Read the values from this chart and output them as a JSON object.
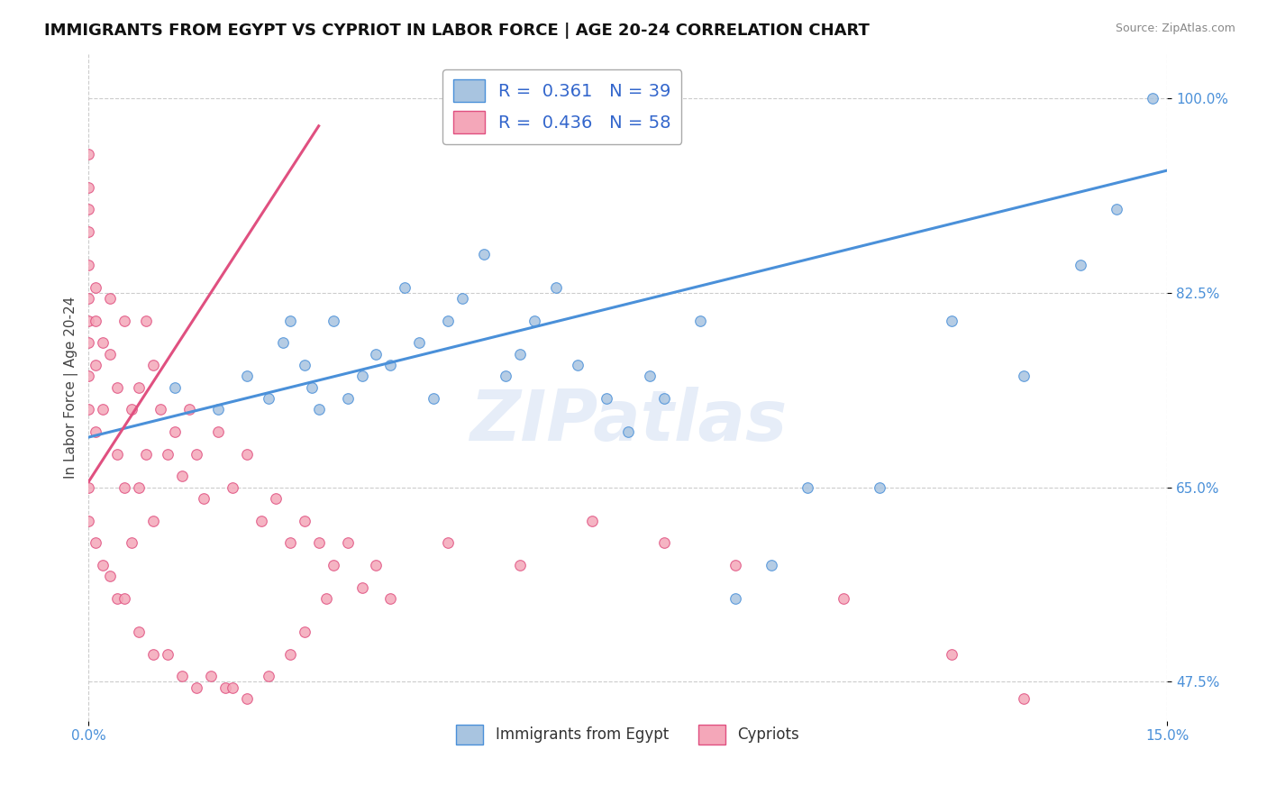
{
  "title": "IMMIGRANTS FROM EGYPT VS CYPRIOT IN LABOR FORCE | AGE 20-24 CORRELATION CHART",
  "source": "Source: ZipAtlas.com",
  "ylabel": "In Labor Force | Age 20-24",
  "xlim": [
    0.0,
    0.15
  ],
  "ylim": [
    0.44,
    1.04
  ],
  "r_egypt": 0.361,
  "n_egypt": 39,
  "r_cypriot": 0.436,
  "n_cypriot": 58,
  "color_egypt": "#a8c4e0",
  "color_cypriot": "#f4a7b9",
  "line_color_egypt": "#4a90d9",
  "line_color_cypriot": "#e05080",
  "legend_egypt": "Immigrants from Egypt",
  "legend_cypriot": "Cypriots",
  "grid_color": "#cccccc",
  "bg_color": "#ffffff",
  "title_fontsize": 13,
  "label_fontsize": 11,
  "tick_fontsize": 11,
  "egypt_x": [
    0.012,
    0.018,
    0.022,
    0.025,
    0.027,
    0.028,
    0.03,
    0.031,
    0.032,
    0.034,
    0.036,
    0.038,
    0.04,
    0.042,
    0.044,
    0.046,
    0.048,
    0.05,
    0.052,
    0.055,
    0.058,
    0.06,
    0.062,
    0.065,
    0.068,
    0.072,
    0.075,
    0.078,
    0.08,
    0.085,
    0.09,
    0.095,
    0.1,
    0.11,
    0.12,
    0.13,
    0.138,
    0.143,
    0.148
  ],
  "egypt_y": [
    0.74,
    0.72,
    0.75,
    0.73,
    0.78,
    0.8,
    0.76,
    0.74,
    0.72,
    0.8,
    0.73,
    0.75,
    0.77,
    0.76,
    0.83,
    0.78,
    0.73,
    0.8,
    0.82,
    0.86,
    0.75,
    0.77,
    0.8,
    0.83,
    0.76,
    0.73,
    0.7,
    0.75,
    0.73,
    0.8,
    0.55,
    0.58,
    0.65,
    0.65,
    0.8,
    0.75,
    0.85,
    0.9,
    1.0
  ],
  "cypriot_x": [
    0.0,
    0.0,
    0.0,
    0.0,
    0.0,
    0.0,
    0.0,
    0.0,
    0.0,
    0.0,
    0.001,
    0.001,
    0.001,
    0.001,
    0.002,
    0.002,
    0.003,
    0.003,
    0.004,
    0.004,
    0.005,
    0.005,
    0.006,
    0.006,
    0.007,
    0.007,
    0.008,
    0.008,
    0.009,
    0.009,
    0.01,
    0.011,
    0.012,
    0.013,
    0.014,
    0.015,
    0.016,
    0.018,
    0.02,
    0.022,
    0.024,
    0.026,
    0.028,
    0.03,
    0.032,
    0.034,
    0.036,
    0.038,
    0.04,
    0.042,
    0.05,
    0.06,
    0.07,
    0.08,
    0.09,
    0.105,
    0.12,
    0.13
  ],
  "cypriot_y": [
    0.72,
    0.75,
    0.78,
    0.8,
    0.82,
    0.85,
    0.88,
    0.9,
    0.92,
    0.95,
    0.7,
    0.76,
    0.8,
    0.83,
    0.78,
    0.72,
    0.77,
    0.82,
    0.68,
    0.74,
    0.8,
    0.65,
    0.72,
    0.6,
    0.74,
    0.65,
    0.8,
    0.68,
    0.76,
    0.62,
    0.72,
    0.68,
    0.7,
    0.66,
    0.72,
    0.68,
    0.64,
    0.7,
    0.65,
    0.68,
    0.62,
    0.64,
    0.6,
    0.62,
    0.6,
    0.58,
    0.6,
    0.56,
    0.58,
    0.55,
    0.6,
    0.58,
    0.62,
    0.6,
    0.58,
    0.55,
    0.5,
    0.46
  ],
  "cypriot_low_x": [
    0.0,
    0.0,
    0.001,
    0.002,
    0.003,
    0.004,
    0.005,
    0.007,
    0.009,
    0.011,
    0.013,
    0.015,
    0.017,
    0.019,
    0.02,
    0.022,
    0.025,
    0.028,
    0.03,
    0.033
  ],
  "cypriot_low_y": [
    0.65,
    0.62,
    0.6,
    0.58,
    0.57,
    0.55,
    0.55,
    0.52,
    0.5,
    0.5,
    0.48,
    0.47,
    0.48,
    0.47,
    0.47,
    0.46,
    0.48,
    0.5,
    0.52,
    0.55
  ]
}
